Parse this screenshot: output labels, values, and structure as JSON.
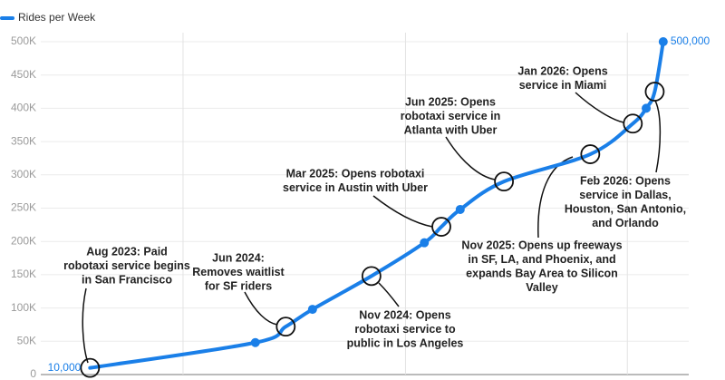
{
  "chart_data": {
    "type": "line",
    "legend_position": "top-left",
    "grid": true,
    "series": [
      {
        "name": "Rides per Week",
        "color": "#1a7fe8",
        "x": [
          "2023-08-01",
          "2024-04-29",
          "2024-06-18",
          "2024-08-01",
          "2024-11-06",
          "2025-02-01",
          "2025-03-01",
          "2025-04-01",
          "2025-06-12",
          "2025-11-01",
          "2026-01-10",
          "2026-02-01",
          "2026-02-15",
          "2026-03-01"
        ],
        "values": [
          10000,
          48000,
          72000,
          98000,
          148000,
          198000,
          222000,
          248000,
          290000,
          331000,
          377000,
          400000,
          425000,
          500000
        ],
        "value_labels": [
          "10,000",
          null,
          null,
          null,
          null,
          null,
          null,
          null,
          null,
          null,
          null,
          null,
          null,
          "500,000"
        ]
      }
    ],
    "xlim": [
      "2023-05-12",
      "2026-04-12"
    ],
    "xticks": [
      "2024-01-01",
      "2025-01-01",
      "2026-01-01"
    ],
    "ylim": [
      0,
      500000
    ],
    "yticks": [
      {
        "value": 0,
        "label": "0"
      },
      {
        "value": 50000,
        "label": "50K"
      },
      {
        "value": 100000,
        "label": "100K"
      },
      {
        "value": 150000,
        "label": "150K"
      },
      {
        "value": 200000,
        "label": "200K"
      },
      {
        "value": 250000,
        "label": "250K"
      },
      {
        "value": 300000,
        "label": "300K"
      },
      {
        "value": 350000,
        "label": "350K"
      },
      {
        "value": 400000,
        "label": "400K"
      },
      {
        "value": 450000,
        "label": "450K"
      },
      {
        "value": 500000,
        "label": "500K"
      }
    ],
    "annotations": [
      [
        "Aug 2023: Paid",
        "robotaxi service begins",
        "in San Francisco"
      ],
      [
        "Jun 2024:",
        "Removes waitlist",
        "for SF riders"
      ],
      [
        "Nov 2024: Opens",
        "robotaxi service to",
        "public in Los Angeles"
      ],
      [
        "Mar 2025: Opens robotaxi",
        "service in Austin with Uber"
      ],
      [
        "Jun 2025: Opens",
        "robotaxi service in",
        "Atlanta with Uber"
      ],
      [
        "Nov 2025: Opens up freeways",
        "in SF, LA, and Phoenix, and",
        "expands Bay Area to Silicon",
        "Valley"
      ],
      [
        "Jan 2026: Opens",
        "service in Miami"
      ],
      [
        "Feb 2026: Opens",
        "service in Dallas,",
        "Houston, San Antonio,",
        "and Orlando"
      ]
    ]
  }
}
